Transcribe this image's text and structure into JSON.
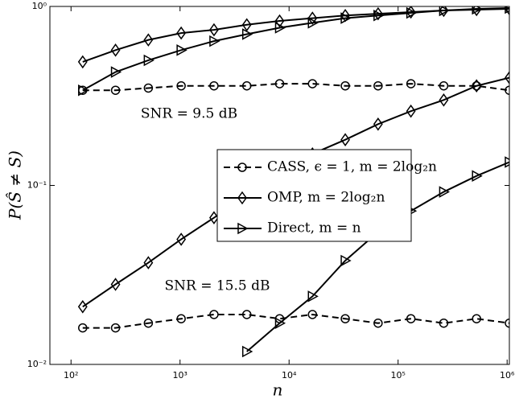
{
  "chart_data": {
    "type": "line",
    "log_x": true,
    "log_y": true,
    "grid": false,
    "xlabel": "n",
    "ylabel": "P(Ŝ ≠ S)",
    "x": [
      128,
      256,
      512,
      1024,
      2048,
      4096,
      8192,
      16384,
      32768,
      65536,
      131072,
      262144,
      524288,
      1048576
    ],
    "xlim": [
      64,
      1048576
    ],
    "ylim": [
      0.01,
      1
    ],
    "xticks": [
      {
        "value": 100,
        "label": "10²"
      },
      {
        "value": 1000,
        "label": "10³"
      },
      {
        "value": 10000,
        "label": "10⁴"
      },
      {
        "value": 100000,
        "label": "10⁵"
      },
      {
        "value": 1000000,
        "label": "10⁶"
      }
    ],
    "yticks": [
      {
        "value": 0.01,
        "label": "10⁻²"
      },
      {
        "value": 0.1,
        "label": "10⁻¹"
      },
      {
        "value": 1,
        "label": "10⁰"
      }
    ],
    "annotations": [
      "SNR = 9.5 dB",
      "SNR = 15.5 dB"
    ],
    "series": [
      {
        "name": "CASS, ϵ = 1, m = 2log₂n",
        "color": "#000000",
        "marker": "circle",
        "dashed": true,
        "values": [
          0.34,
          0.34,
          0.35,
          0.36,
          0.36,
          0.36,
          0.37,
          0.37,
          0.36,
          0.36,
          0.37,
          0.36,
          0.36,
          0.34
        ]
      },
      {
        "name": "OMP, m = 2log₂n",
        "color": "#000000",
        "marker": "diamond",
        "dashed": false,
        "values": [
          0.49,
          0.57,
          0.65,
          0.71,
          0.74,
          0.79,
          0.83,
          0.86,
          0.89,
          0.91,
          0.93,
          0.95,
          0.96,
          0.97
        ]
      },
      {
        "name": "Direct, m = n",
        "color": "#000000",
        "marker": "triangle",
        "dashed": false,
        "values": [
          0.34,
          0.43,
          0.5,
          0.57,
          0.64,
          0.7,
          0.76,
          0.81,
          0.86,
          0.89,
          0.92,
          0.95,
          0.97,
          0.98
        ]
      },
      {
        "color": "#000000",
        "marker": "circle",
        "dashed": true,
        "values": [
          0.016,
          0.016,
          0.017,
          0.018,
          0.019,
          0.019,
          0.018,
          0.019,
          0.018,
          0.017,
          0.018,
          0.017,
          0.018,
          0.017
        ]
      },
      {
        "color": "#000000",
        "marker": "diamond",
        "dashed": false,
        "values": [
          0.021,
          0.028,
          0.037,
          0.05,
          0.066,
          0.088,
          0.115,
          0.15,
          0.18,
          0.22,
          0.26,
          0.3,
          0.36,
          0.4
        ]
      },
      {
        "color": "#000000",
        "marker": "triangle",
        "dashed": false,
        "values": [
          null,
          null,
          null,
          null,
          null,
          0.0118,
          0.017,
          0.024,
          0.038,
          0.055,
          0.072,
          0.092,
          0.113,
          0.135
        ]
      }
    ]
  }
}
